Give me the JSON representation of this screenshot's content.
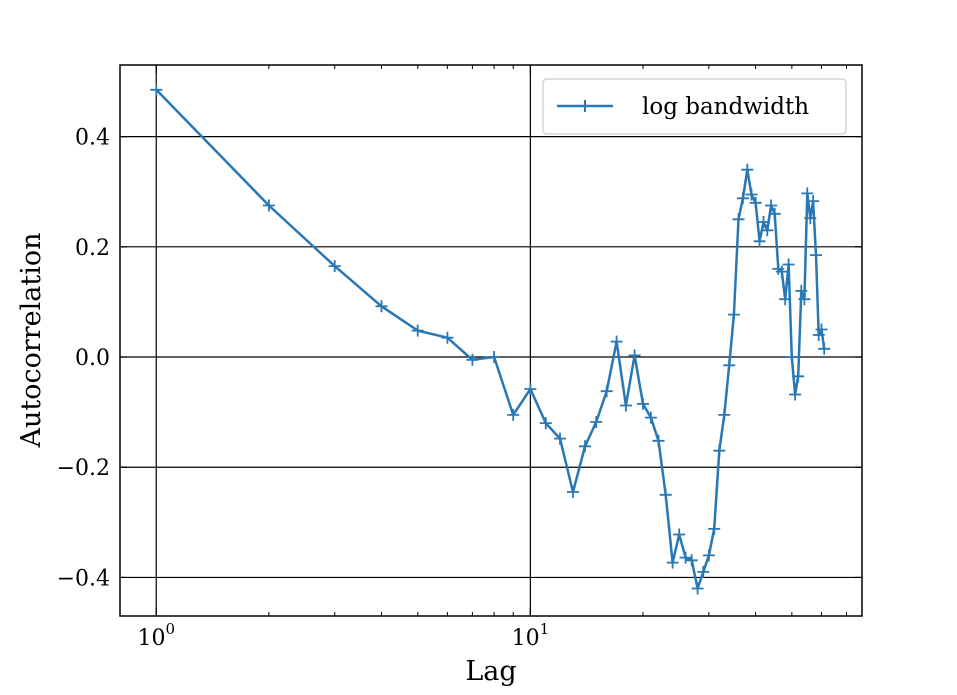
{
  "chart_data": {
    "type": "line",
    "xlabel": "Lag",
    "ylabel": "Autocorrelation",
    "xscale": "log",
    "xlim": [
      0.8,
      77
    ],
    "ylim": [
      -0.47,
      0.53
    ],
    "x_ticks": [
      {
        "value": 1,
        "base": "10",
        "exp": "0"
      },
      {
        "value": 10,
        "base": "10",
        "exp": "1"
      }
    ],
    "y_ticks": [
      {
        "value": 0.4,
        "label": "0.4"
      },
      {
        "value": 0.2,
        "label": "0.2"
      },
      {
        "value": 0.0,
        "label": "0.0"
      },
      {
        "value": -0.2,
        "label": "−0.2"
      },
      {
        "value": -0.4,
        "label": "−0.4"
      }
    ],
    "grid": true,
    "legend_position": "top-right",
    "marker": "+",
    "series": [
      {
        "name": "log bandwidth",
        "color": "#2878b5",
        "x": [
          1,
          2,
          3,
          4,
          5,
          6,
          7,
          8,
          9,
          10,
          11,
          12,
          13,
          14,
          15,
          16,
          17,
          18,
          19,
          20,
          21,
          22,
          23,
          24,
          25,
          26,
          27,
          28,
          29,
          30,
          31,
          32,
          33,
          34,
          35,
          36,
          37,
          38,
          39,
          40,
          41,
          42,
          43,
          44,
          45,
          46,
          47,
          48,
          49,
          50,
          51,
          52,
          53,
          54,
          55,
          56,
          57,
          58,
          59,
          60,
          61
        ],
        "values": [
          0.485,
          0.275,
          0.165,
          0.092,
          0.048,
          0.035,
          -0.005,
          0.0,
          -0.105,
          -0.058,
          -0.12,
          -0.148,
          -0.245,
          -0.162,
          -0.118,
          -0.062,
          0.028,
          -0.088,
          0.003,
          -0.085,
          -0.11,
          -0.152,
          -0.25,
          -0.373,
          -0.322,
          -0.364,
          -0.369,
          -0.42,
          -0.39,
          -0.36,
          -0.312,
          -0.17,
          -0.105,
          -0.015,
          0.077,
          0.25,
          0.288,
          0.34,
          0.295,
          0.28,
          0.21,
          0.245,
          0.23,
          0.275,
          0.26,
          0.16,
          0.155,
          0.105,
          0.168,
          0.0,
          -0.068,
          -0.035,
          0.12,
          0.105,
          0.297,
          0.252,
          0.283,
          0.185,
          0.04,
          0.05,
          0.015
        ]
      }
    ]
  }
}
